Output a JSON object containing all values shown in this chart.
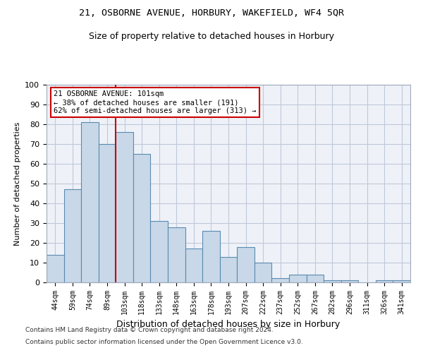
{
  "title1": "21, OSBORNE AVENUE, HORBURY, WAKEFIELD, WF4 5QR",
  "title2": "Size of property relative to detached houses in Horbury",
  "xlabel": "Distribution of detached houses by size in Horbury",
  "ylabel": "Number of detached properties",
  "categories": [
    "44sqm",
    "59sqm",
    "74sqm",
    "89sqm",
    "103sqm",
    "118sqm",
    "133sqm",
    "148sqm",
    "163sqm",
    "178sqm",
    "193sqm",
    "207sqm",
    "222sqm",
    "237sqm",
    "252sqm",
    "267sqm",
    "282sqm",
    "296sqm",
    "311sqm",
    "326sqm",
    "341sqm"
  ],
  "values": [
    14,
    47,
    81,
    70,
    76,
    65,
    31,
    28,
    17,
    26,
    13,
    18,
    10,
    2,
    4,
    4,
    1,
    1,
    0,
    1,
    1
  ],
  "bar_color": "#c8d8e8",
  "bar_edge_color": "#5a8ab0",
  "vline_pos": 3.5,
  "annotation_text": "21 OSBORNE AVENUE: 101sqm\n← 38% of detached houses are smaller (191)\n62% of semi-detached houses are larger (313) →",
  "annotation_box_color": "#ffffff",
  "annotation_box_edge_color": "#cc0000",
  "footnote1": "Contains HM Land Registry data © Crown copyright and database right 2024.",
  "footnote2": "Contains public sector information licensed under the Open Government Licence v3.0.",
  "ylim": [
    0,
    100
  ],
  "yticks": [
    0,
    10,
    20,
    30,
    40,
    50,
    60,
    70,
    80,
    90,
    100
  ],
  "grid_color": "#c0c8d8",
  "background_color": "#eef2f8",
  "figure_bg": "#ffffff"
}
